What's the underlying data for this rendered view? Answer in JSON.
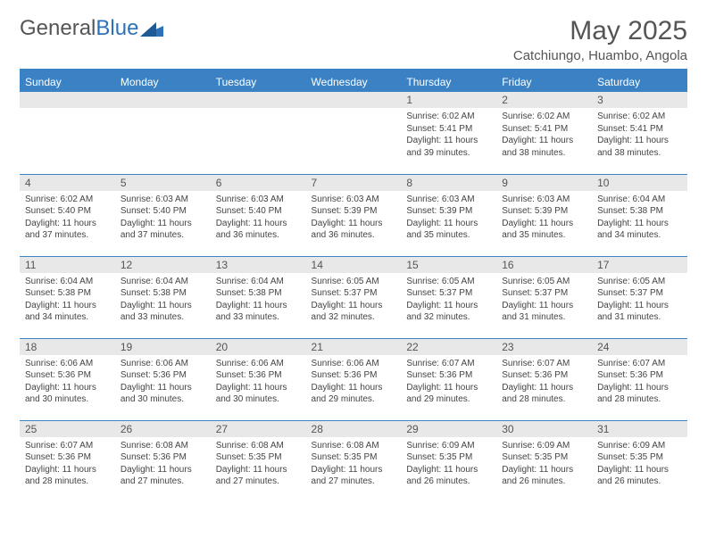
{
  "logo": {
    "text1": "General",
    "text2": "Blue"
  },
  "title": "May 2025",
  "location": "Catchiungo, Huambo, Angola",
  "colors": {
    "header_bg": "#3b82c4",
    "header_text": "#ffffff",
    "daynum_bg": "#e8e8e8",
    "border": "#3b82c4",
    "body_text": "#444444",
    "title_text": "#555555"
  },
  "day_headers": [
    "Sunday",
    "Monday",
    "Tuesday",
    "Wednesday",
    "Thursday",
    "Friday",
    "Saturday"
  ],
  "weeks": [
    [
      {
        "n": "",
        "sr": "",
        "ss": "",
        "dl": ""
      },
      {
        "n": "",
        "sr": "",
        "ss": "",
        "dl": ""
      },
      {
        "n": "",
        "sr": "",
        "ss": "",
        "dl": ""
      },
      {
        "n": "",
        "sr": "",
        "ss": "",
        "dl": ""
      },
      {
        "n": "1",
        "sr": "Sunrise: 6:02 AM",
        "ss": "Sunset: 5:41 PM",
        "dl": "Daylight: 11 hours and 39 minutes."
      },
      {
        "n": "2",
        "sr": "Sunrise: 6:02 AM",
        "ss": "Sunset: 5:41 PM",
        "dl": "Daylight: 11 hours and 38 minutes."
      },
      {
        "n": "3",
        "sr": "Sunrise: 6:02 AM",
        "ss": "Sunset: 5:41 PM",
        "dl": "Daylight: 11 hours and 38 minutes."
      }
    ],
    [
      {
        "n": "4",
        "sr": "Sunrise: 6:02 AM",
        "ss": "Sunset: 5:40 PM",
        "dl": "Daylight: 11 hours and 37 minutes."
      },
      {
        "n": "5",
        "sr": "Sunrise: 6:03 AM",
        "ss": "Sunset: 5:40 PM",
        "dl": "Daylight: 11 hours and 37 minutes."
      },
      {
        "n": "6",
        "sr": "Sunrise: 6:03 AM",
        "ss": "Sunset: 5:40 PM",
        "dl": "Daylight: 11 hours and 36 minutes."
      },
      {
        "n": "7",
        "sr": "Sunrise: 6:03 AM",
        "ss": "Sunset: 5:39 PM",
        "dl": "Daylight: 11 hours and 36 minutes."
      },
      {
        "n": "8",
        "sr": "Sunrise: 6:03 AM",
        "ss": "Sunset: 5:39 PM",
        "dl": "Daylight: 11 hours and 35 minutes."
      },
      {
        "n": "9",
        "sr": "Sunrise: 6:03 AM",
        "ss": "Sunset: 5:39 PM",
        "dl": "Daylight: 11 hours and 35 minutes."
      },
      {
        "n": "10",
        "sr": "Sunrise: 6:04 AM",
        "ss": "Sunset: 5:38 PM",
        "dl": "Daylight: 11 hours and 34 minutes."
      }
    ],
    [
      {
        "n": "11",
        "sr": "Sunrise: 6:04 AM",
        "ss": "Sunset: 5:38 PM",
        "dl": "Daylight: 11 hours and 34 minutes."
      },
      {
        "n": "12",
        "sr": "Sunrise: 6:04 AM",
        "ss": "Sunset: 5:38 PM",
        "dl": "Daylight: 11 hours and 33 minutes."
      },
      {
        "n": "13",
        "sr": "Sunrise: 6:04 AM",
        "ss": "Sunset: 5:38 PM",
        "dl": "Daylight: 11 hours and 33 minutes."
      },
      {
        "n": "14",
        "sr": "Sunrise: 6:05 AM",
        "ss": "Sunset: 5:37 PM",
        "dl": "Daylight: 11 hours and 32 minutes."
      },
      {
        "n": "15",
        "sr": "Sunrise: 6:05 AM",
        "ss": "Sunset: 5:37 PM",
        "dl": "Daylight: 11 hours and 32 minutes."
      },
      {
        "n": "16",
        "sr": "Sunrise: 6:05 AM",
        "ss": "Sunset: 5:37 PM",
        "dl": "Daylight: 11 hours and 31 minutes."
      },
      {
        "n": "17",
        "sr": "Sunrise: 6:05 AM",
        "ss": "Sunset: 5:37 PM",
        "dl": "Daylight: 11 hours and 31 minutes."
      }
    ],
    [
      {
        "n": "18",
        "sr": "Sunrise: 6:06 AM",
        "ss": "Sunset: 5:36 PM",
        "dl": "Daylight: 11 hours and 30 minutes."
      },
      {
        "n": "19",
        "sr": "Sunrise: 6:06 AM",
        "ss": "Sunset: 5:36 PM",
        "dl": "Daylight: 11 hours and 30 minutes."
      },
      {
        "n": "20",
        "sr": "Sunrise: 6:06 AM",
        "ss": "Sunset: 5:36 PM",
        "dl": "Daylight: 11 hours and 30 minutes."
      },
      {
        "n": "21",
        "sr": "Sunrise: 6:06 AM",
        "ss": "Sunset: 5:36 PM",
        "dl": "Daylight: 11 hours and 29 minutes."
      },
      {
        "n": "22",
        "sr": "Sunrise: 6:07 AM",
        "ss": "Sunset: 5:36 PM",
        "dl": "Daylight: 11 hours and 29 minutes."
      },
      {
        "n": "23",
        "sr": "Sunrise: 6:07 AM",
        "ss": "Sunset: 5:36 PM",
        "dl": "Daylight: 11 hours and 28 minutes."
      },
      {
        "n": "24",
        "sr": "Sunrise: 6:07 AM",
        "ss": "Sunset: 5:36 PM",
        "dl": "Daylight: 11 hours and 28 minutes."
      }
    ],
    [
      {
        "n": "25",
        "sr": "Sunrise: 6:07 AM",
        "ss": "Sunset: 5:36 PM",
        "dl": "Daylight: 11 hours and 28 minutes."
      },
      {
        "n": "26",
        "sr": "Sunrise: 6:08 AM",
        "ss": "Sunset: 5:36 PM",
        "dl": "Daylight: 11 hours and 27 minutes."
      },
      {
        "n": "27",
        "sr": "Sunrise: 6:08 AM",
        "ss": "Sunset: 5:35 PM",
        "dl": "Daylight: 11 hours and 27 minutes."
      },
      {
        "n": "28",
        "sr": "Sunrise: 6:08 AM",
        "ss": "Sunset: 5:35 PM",
        "dl": "Daylight: 11 hours and 27 minutes."
      },
      {
        "n": "29",
        "sr": "Sunrise: 6:09 AM",
        "ss": "Sunset: 5:35 PM",
        "dl": "Daylight: 11 hours and 26 minutes."
      },
      {
        "n": "30",
        "sr": "Sunrise: 6:09 AM",
        "ss": "Sunset: 5:35 PM",
        "dl": "Daylight: 11 hours and 26 minutes."
      },
      {
        "n": "31",
        "sr": "Sunrise: 6:09 AM",
        "ss": "Sunset: 5:35 PM",
        "dl": "Daylight: 11 hours and 26 minutes."
      }
    ]
  ]
}
